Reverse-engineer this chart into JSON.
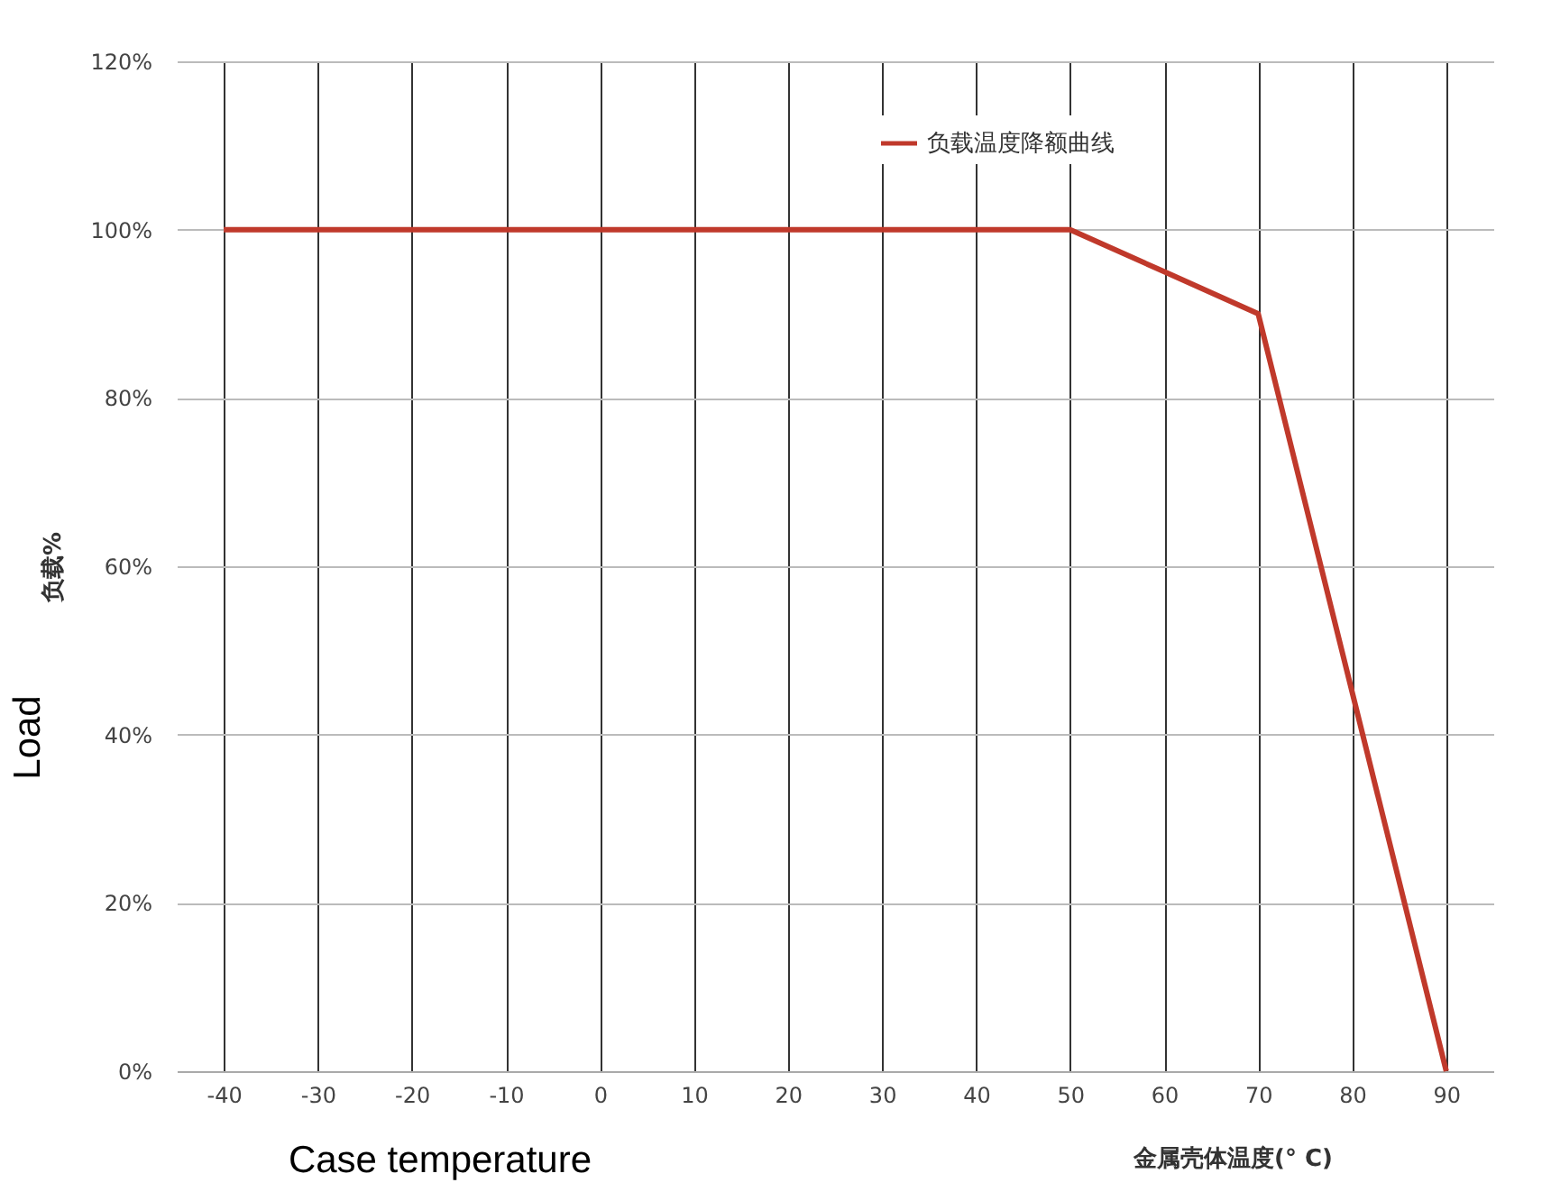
{
  "chart_data": {
    "type": "line",
    "xlabel": "金属壳体温度(° C)",
    "ylabel": "负载%",
    "annotations": [
      "Load",
      "Case temperature"
    ],
    "categories": [
      "-40",
      "-30",
      "-20",
      "-10",
      "0",
      "10",
      "20",
      "30",
      "40",
      "50",
      "60",
      "70",
      "80",
      "90"
    ],
    "series": [
      {
        "name": "负载温度降额曲线",
        "color": "#c0392b",
        "values": [
          100,
          100,
          100,
          100,
          100,
          100,
          100,
          100,
          100,
          100,
          95,
          90,
          45,
          0
        ]
      }
    ],
    "ylim": [
      0,
      120
    ],
    "yticks": [
      {
        "value": 0,
        "label": "0%"
      },
      {
        "value": 20,
        "label": "20%"
      },
      {
        "value": 40,
        "label": "40%"
      },
      {
        "value": 60,
        "label": "60%"
      },
      {
        "value": 80,
        "label": "80%"
      },
      {
        "value": 100,
        "label": "100%"
      },
      {
        "value": 120,
        "label": "120%"
      }
    ],
    "grid": true,
    "legend": "top",
    "marker": "none",
    "line_style": "solid"
  }
}
